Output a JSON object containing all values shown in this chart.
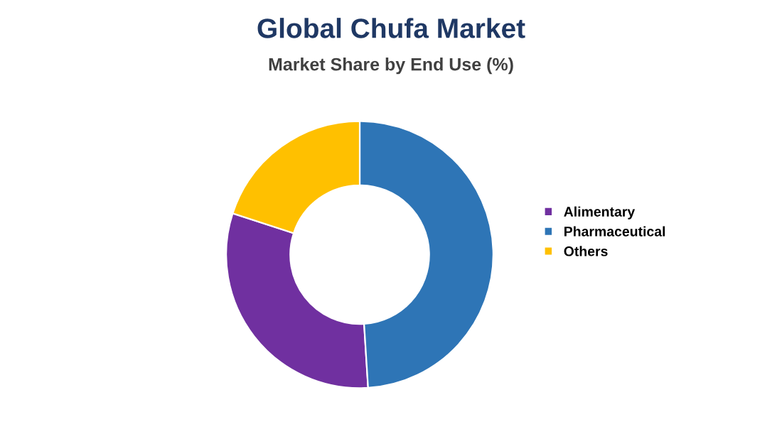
{
  "chart_data": {
    "type": "donut",
    "title": "Global Chufa Market",
    "subtitle": "Market Share by End Use (%)",
    "categories": [
      "Alimentary",
      "Pharmaceutical",
      "Others"
    ],
    "values": [
      31,
      49,
      20
    ],
    "colors": [
      "#7030a0",
      "#2e75b6",
      "#ffc000"
    ],
    "legend": "right"
  }
}
